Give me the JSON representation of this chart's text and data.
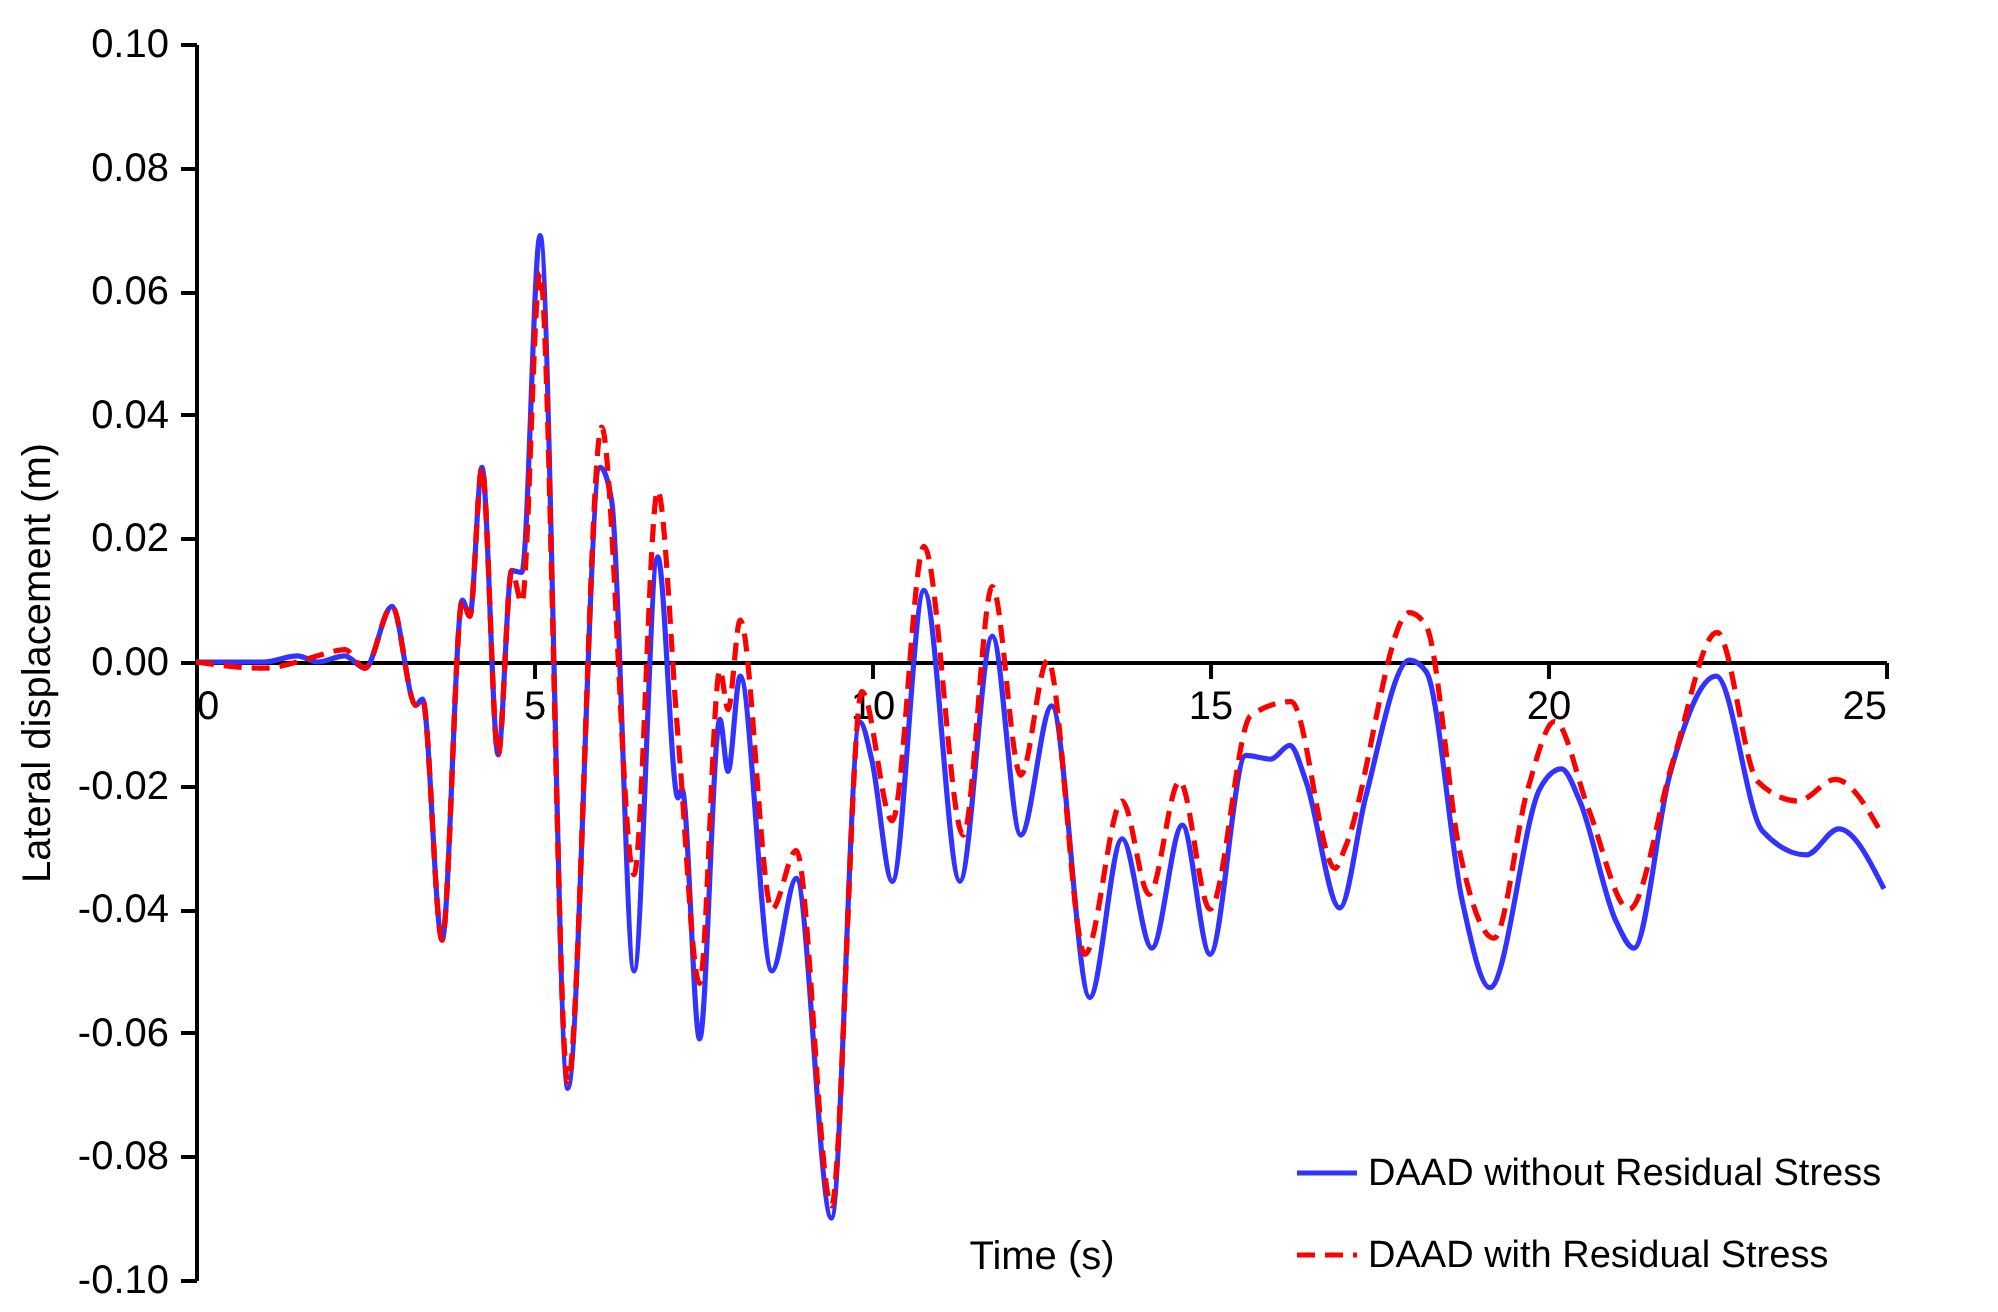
{
  "chart_data": {
    "type": "line",
    "xlabel": "Time (s)",
    "ylabel": "Lateral displacement (m)",
    "xlim": [
      0,
      25
    ],
    "xticks": [
      0,
      5,
      10,
      15,
      20,
      25
    ],
    "ylim": [
      -0.1,
      0.1
    ],
    "yticks": [
      {
        "value": -0.1,
        "label": "-0.10"
      },
      {
        "value": -0.08,
        "label": "-0.08"
      },
      {
        "value": -0.06,
        "label": "-0.06"
      },
      {
        "value": -0.04,
        "label": "-0.04"
      },
      {
        "value": -0.02,
        "label": "-0.02"
      },
      {
        "value": 0,
        "label": "0.00"
      },
      {
        "value": 0.02,
        "label": "0.02"
      },
      {
        "value": 0.04,
        "label": "0.04"
      },
      {
        "value": 0.06,
        "label": "0.06"
      },
      {
        "value": 0.08,
        "label": "0.08"
      },
      {
        "value": 0.1,
        "label": "0.10"
      }
    ],
    "grid": false,
    "legend": "bottom right",
    "marker": "none",
    "series": [
      {
        "name": "DAAD without Residual Stress",
        "color": "#3333ff",
        "line_style": "solid",
        "x": [
          0,
          1,
          1.5,
          1.8,
          2.2,
          2.5,
          2.9,
          3.25,
          3.35,
          3.64,
          3.94,
          4.05,
          4.23,
          4.47,
          4.67,
          4.82,
          5.09,
          5.5,
          5.98,
          6.15,
          6.48,
          6.83,
          7.13,
          7.19,
          7.45,
          7.75,
          7.87,
          8.05,
          8.52,
          8.88,
          9.4,
          9.82,
          10.0,
          10.3,
          10.77,
          11.3,
          11.78,
          12.2,
          12.66,
          13.22,
          13.7,
          14.14,
          14.59,
          15.0,
          15.53,
          15.9,
          16.18,
          16.42,
          16.92,
          17.3,
          17.95,
          18.2,
          18.73,
          19.14,
          19.88,
          20.2,
          20.47,
          21.0,
          21.27,
          21.8,
          22.49,
          23.17,
          23.82,
          24.3,
          24.97
        ],
        "values": [
          0,
          0,
          0.001,
          0,
          0.001,
          -0.001,
          0.009,
          -0.007,
          -0.006,
          -0.045,
          0.01,
          0.0074,
          0.0315,
          -0.015,
          0.0148,
          0.0145,
          0.069,
          -0.069,
          0.0315,
          0.026,
          -0.05,
          0.017,
          -0.022,
          -0.0206,
          -0.061,
          -0.0093,
          -0.0177,
          -0.0023,
          -0.05,
          -0.035,
          -0.09,
          -0.0097,
          -0.016,
          -0.0355,
          0.0116,
          -0.0355,
          0.0042,
          -0.028,
          -0.0071,
          -0.0543,
          -0.0286,
          -0.0463,
          -0.0264,
          -0.0473,
          -0.0151,
          -0.0157,
          -0.0135,
          -0.0193,
          -0.0398,
          -0.022,
          0.0003,
          -0.0016,
          -0.0386,
          -0.0527,
          -0.0205,
          -0.0173,
          -0.0225,
          -0.0418,
          -0.0463,
          -0.0183,
          -0.0023,
          -0.0273,
          -0.0312,
          -0.027,
          -0.0367
        ]
      },
      {
        "name": "DAAD with Residual Stress",
        "color": "#ff0000",
        "line_style": "dashed",
        "x": [
          0,
          1,
          1.5,
          1.8,
          2.2,
          2.5,
          2.9,
          3.25,
          3.35,
          3.64,
          3.94,
          4.05,
          4.23,
          4.47,
          4.67,
          4.82,
          5.09,
          5.5,
          6.0,
          6.48,
          6.83,
          7.13,
          7.45,
          7.75,
          7.87,
          8.05,
          8.52,
          8.88,
          9.4,
          9.85,
          10.3,
          10.77,
          11.35,
          11.78,
          12.2,
          12.6,
          13.15,
          13.7,
          14.1,
          14.55,
          15.0,
          15.6,
          16.2,
          16.85,
          17.0,
          17.95,
          18.2,
          18.7,
          19.2,
          19.7,
          20.1,
          20.6,
          21.2,
          21.85,
          22.5,
          23.1,
          23.7,
          24.25,
          24.95
        ],
        "values": [
          0,
          -0.001,
          0,
          0.001,
          0.002,
          -0.001,
          0.009,
          -0.007,
          -0.006,
          -0.045,
          0.01,
          0.0074,
          0.0315,
          -0.015,
          0.0148,
          0.0096,
          0.063,
          -0.068,
          0.038,
          -0.0344,
          0.0277,
          -0.012,
          -0.052,
          -0.0013,
          -0.0077,
          0.0068,
          -0.04,
          -0.0305,
          -0.088,
          -0.0048,
          -0.0257,
          0.0187,
          -0.028,
          0.0122,
          -0.0183,
          0.0003,
          -0.0473,
          -0.0225,
          -0.0376,
          -0.0193,
          -0.04,
          -0.0087,
          -0.0064,
          -0.0334,
          -0.03,
          0.008,
          0.0058,
          -0.031,
          -0.0447,
          -0.0206,
          -0.0096,
          -0.0238,
          -0.04,
          -0.016,
          0.0048,
          -0.0193,
          -0.0225,
          -0.019,
          -0.028
        ]
      }
    ]
  }
}
